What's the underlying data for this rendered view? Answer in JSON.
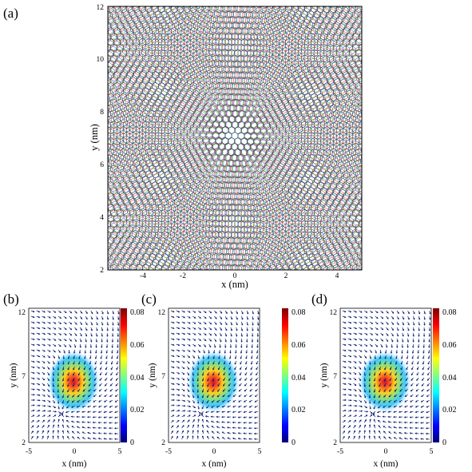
{
  "figure": {
    "panel_a": {
      "label": "(a)",
      "xlabel": "x (nm)",
      "ylabel": "y (nm)",
      "xticks": [
        "-4",
        "-2",
        "0",
        "2",
        "4"
      ],
      "yticks": [
        "12",
        "10",
        "8",
        "6",
        "4",
        "2"
      ]
    },
    "panel_b": {
      "label": "(b)"
    },
    "panel_c": {
      "label": "(c)"
    },
    "panel_d": {
      "label": "(d)"
    },
    "small_panels": {
      "xlabel": "x (nm)",
      "ylabel": "y (nm)",
      "xticks": [
        "-5",
        "0",
        "5"
      ],
      "yticks": [
        "12",
        "7",
        "2"
      ],
      "colorbar_ticks": [
        "0.08",
        "0.06",
        "0.04",
        "0.02",
        "0"
      ]
    },
    "colors": {
      "lattice_1": "#000000",
      "lattice_2": "#d62728",
      "lattice_3": "#2ca02c",
      "lattice_4": "#1f3fbf",
      "arrows": "#0a1a6e"
    }
  },
  "chart_data": [
    {
      "type": "scatter",
      "panel": "(a)",
      "title": "",
      "xlabel": "x (nm)",
      "ylabel": "y (nm)",
      "xlim": [
        -5,
        5
      ],
      "ylim": [
        2,
        12
      ],
      "description_of_marks": "overlaid twisted honeycomb lattices forming a moire pattern centred near (0, 7)"
    },
    {
      "type": "heatmap",
      "panel": "(b)",
      "xlabel": "x (nm)",
      "ylabel": "y (nm)",
      "xlim": [
        -5,
        5
      ],
      "ylim": [
        2,
        12
      ],
      "colorbar_range": [
        0,
        0.08
      ],
      "peak": {
        "x": -0.5,
        "y": 7,
        "value": 0.08
      }
    },
    {
      "type": "heatmap",
      "panel": "(c)",
      "xlabel": "x (nm)",
      "ylabel": "y (nm)",
      "xlim": [
        -5,
        5
      ],
      "ylim": [
        2,
        12
      ],
      "colorbar_range": [
        0,
        0.08
      ],
      "peak": {
        "x": -0.5,
        "y": 7,
        "value": 0.08
      }
    },
    {
      "type": "heatmap",
      "panel": "(d)",
      "xlabel": "x (nm)",
      "ylabel": "y (nm)",
      "xlim": [
        -5,
        5
      ],
      "ylim": [
        2,
        12
      ],
      "colorbar_range": [
        0,
        0.08
      ],
      "peak": {
        "x": -0.5,
        "y": 7,
        "value": 0.08
      }
    }
  ]
}
